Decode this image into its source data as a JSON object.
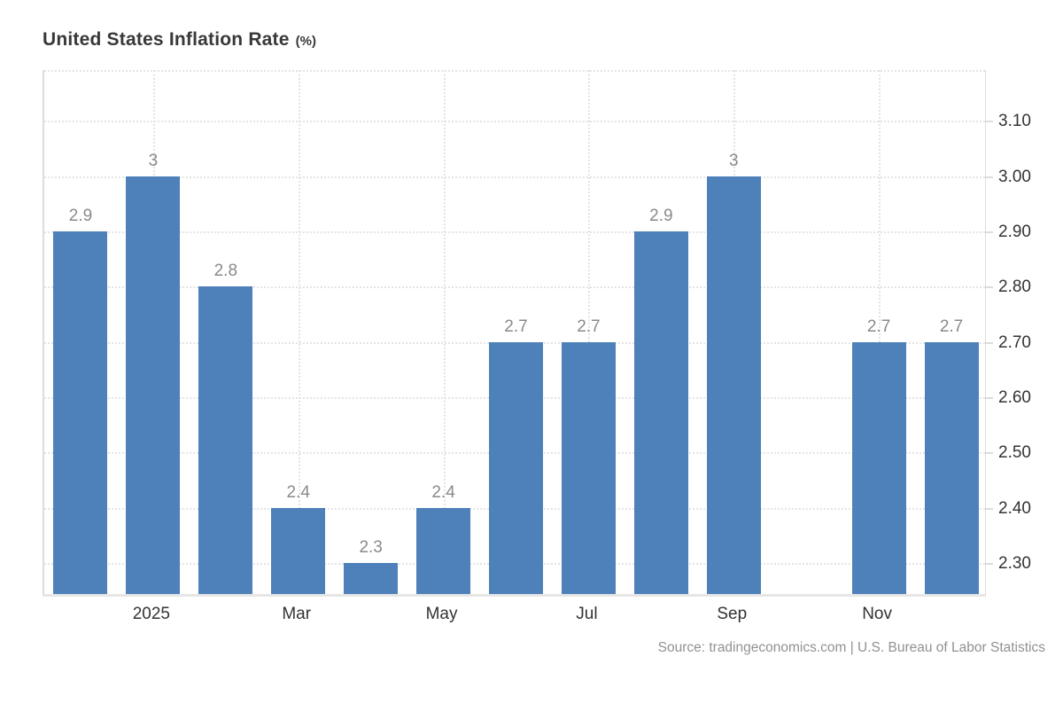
{
  "title": {
    "main": "United States Inflation Rate",
    "unit": "(%)"
  },
  "source_text": "Source: tradingeconomics.com | U.S. Bureau of Labor Statistics",
  "colors": {
    "bar": "#4e80ba",
    "grid": "#e4e4e4",
    "axis_line": "#e6e6e6",
    "axis_text": "#333333",
    "bar_label_text": "#8a8a8a",
    "source_text": "#919191",
    "title_text": "#383838"
  },
  "chart_data": {
    "type": "bar",
    "title": "United States Inflation Rate (%)",
    "ylabel": "",
    "xlabel": "",
    "values": [
      2.9,
      3,
      2.8,
      2.4,
      2.3,
      2.4,
      2.7,
      2.7,
      2.9,
      3,
      null,
      2.7,
      2.7
    ],
    "bar_value_labels": [
      "2.9",
      "3",
      "2.8",
      "2.4",
      "2.3",
      "2.4",
      "2.7",
      "2.7",
      "2.9",
      "3",
      null,
      "2.7",
      "2.7"
    ],
    "x_tick_labels": [
      {
        "slot": 1,
        "label": "2025"
      },
      {
        "slot": 3,
        "label": "Mar"
      },
      {
        "slot": 5,
        "label": "May"
      },
      {
        "slot": 7,
        "label": "Jul"
      },
      {
        "slot": 9,
        "label": "Sep"
      },
      {
        "slot": 11,
        "label": "Nov"
      }
    ],
    "y_tick_labels": [
      "2.30",
      "2.40",
      "2.50",
      "2.60",
      "2.70",
      "2.80",
      "2.90",
      "3.00",
      "3.10"
    ],
    "ylim": [
      2.244,
      3.192
    ],
    "y_axis_side": "right",
    "grid": "dotted",
    "legend": "none"
  }
}
